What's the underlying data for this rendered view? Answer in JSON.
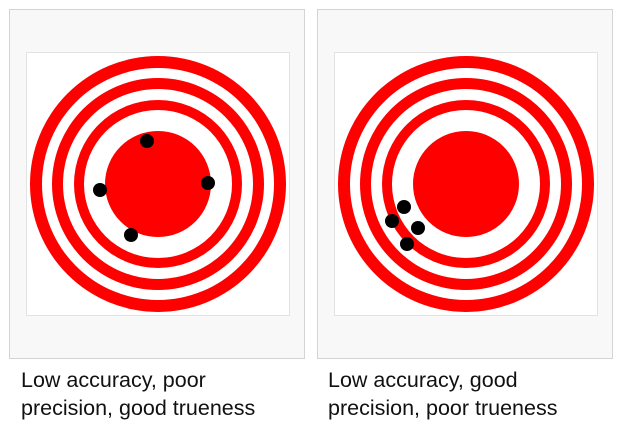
{
  "colors": {
    "ring": "#ff0000",
    "gap": "#ffffff",
    "shot": "#000000"
  },
  "panels": [
    {
      "caption_line1": "Low accuracy, poor",
      "caption_line2": "precision, good trueness"
    },
    {
      "caption_line1": "Low accuracy, good",
      "caption_line2": "precision, poor trueness"
    }
  ]
}
